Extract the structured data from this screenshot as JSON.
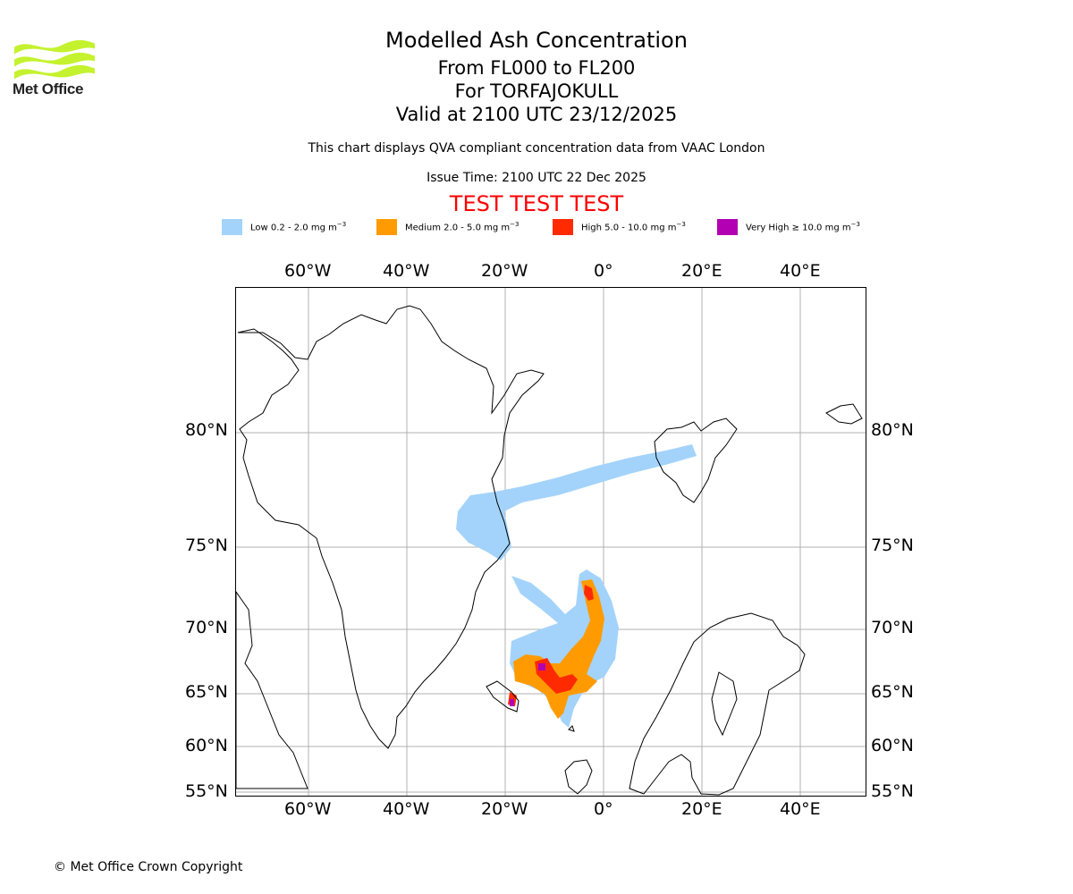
{
  "branding": {
    "logo_text": "Met Office"
  },
  "header": {
    "title": "Modelled Ash Concentration",
    "levels": "From FL000 to FL200",
    "volcano": "For TORFAJOKULL",
    "valid": "Valid at 2100 UTC 23/12/2025",
    "description": "This chart displays QVA compliant concentration data from VAAC London",
    "issue_time": "Issue Time: 2100 UTC 22 Dec 2025",
    "test_banner": "TEST TEST TEST"
  },
  "legend": [
    {
      "label": "Low 0.2 - 2.0 mg m",
      "color": "#a3d3fb"
    },
    {
      "label": "Medium 2.0 - 5.0 mg m",
      "color": "#ff9b00"
    },
    {
      "label": "High 5.0 - 10.0 mg m",
      "color": "#ff2a00"
    },
    {
      "label": "Very High ≥ 10.0 mg m",
      "color": "#b200b2"
    }
  ],
  "legend_unit_exponent": "−3",
  "map": {
    "lon_ticks": [
      "60°W",
      "40°W",
      "20°W",
      "0°",
      "20°E",
      "40°E"
    ],
    "lat_ticks": [
      "80°N",
      "75°N",
      "70°N",
      "65°N",
      "60°N",
      "55°N"
    ],
    "gridlines": true
  },
  "footer": {
    "copyright": "© Met Office Crown Copyright"
  }
}
